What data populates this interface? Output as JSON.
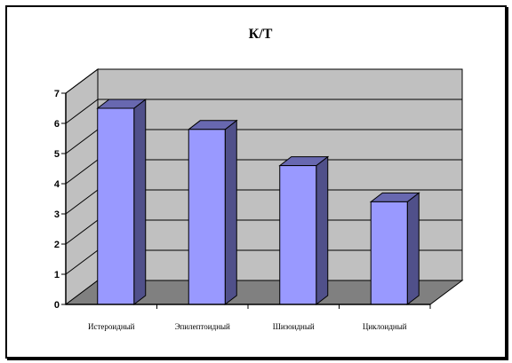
{
  "chart_data": {
    "type": "bar",
    "title": "К/Т",
    "categories": [
      "Истероидный",
      "Эпилептоидный",
      "Шизоидный",
      "Циклоидный"
    ],
    "values": [
      6.5,
      5.8,
      4.6,
      3.4
    ],
    "ylim": [
      0,
      7
    ],
    "yticks": [
      "0",
      "1",
      "2",
      "3",
      "4",
      "5",
      "6",
      "7"
    ],
    "xlabel": "",
    "ylabel": "",
    "grid": true,
    "legend": "none",
    "colors": {
      "bar_front": "#9999ff",
      "bar_side": "#50508a",
      "bar_top": "#6868b0",
      "wall": "#c0c0c0",
      "floor": "#808080"
    }
  }
}
